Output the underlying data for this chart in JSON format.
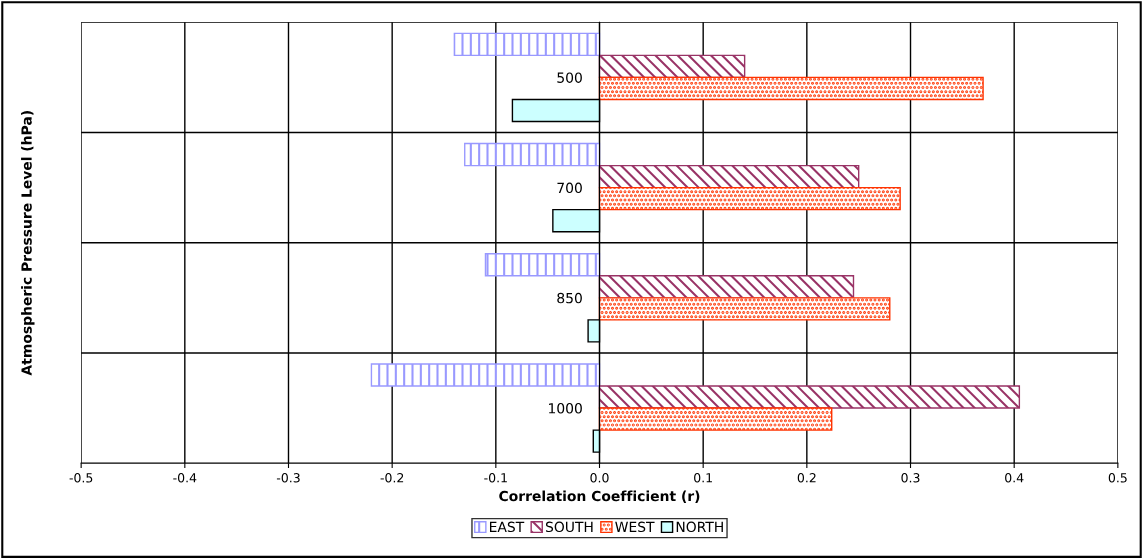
{
  "chart_data": {
    "type": "bar",
    "orientation": "horizontal",
    "categories": [
      "500",
      "700",
      "850",
      "1000"
    ],
    "series": [
      {
        "name": "EAST",
        "color": "#9999ff",
        "values": [
          -0.14,
          -0.13,
          -0.11,
          -0.22
        ]
      },
      {
        "name": "SOUTH",
        "color": "#993366",
        "values": [
          0.14,
          0.25,
          0.245,
          0.405
        ]
      },
      {
        "name": "WEST",
        "color": "#ff3300",
        "values": [
          0.37,
          0.29,
          0.28,
          0.224
        ]
      },
      {
        "name": "NORTH",
        "color": "#ccffff",
        "values": [
          -0.084,
          -0.045,
          -0.011,
          -0.006
        ]
      }
    ],
    "xlabel": "Correlation Coefficient (r)",
    "ylabel": "Atmospheric Pressure Level (hPa)",
    "xlim": [
      -0.5,
      0.5
    ],
    "xticks": [
      {
        "value": -0.5,
        "label": "-0.5"
      },
      {
        "value": -0.4,
        "label": "-0.4"
      },
      {
        "value": -0.3,
        "label": "-0.3"
      },
      {
        "value": -0.2,
        "label": "-0.2"
      },
      {
        "value": -0.1,
        "label": "-0.1"
      },
      {
        "value": 0,
        "label": "0.0"
      },
      {
        "value": 0.1,
        "label": "0.1"
      },
      {
        "value": 0.2,
        "label": "0.2"
      },
      {
        "value": 0.3,
        "label": "0.3"
      },
      {
        "value": 0.4,
        "label": "0.4"
      },
      {
        "value": 0.5,
        "label": "0.5"
      }
    ],
    "grid": true,
    "legend": "bottom"
  }
}
